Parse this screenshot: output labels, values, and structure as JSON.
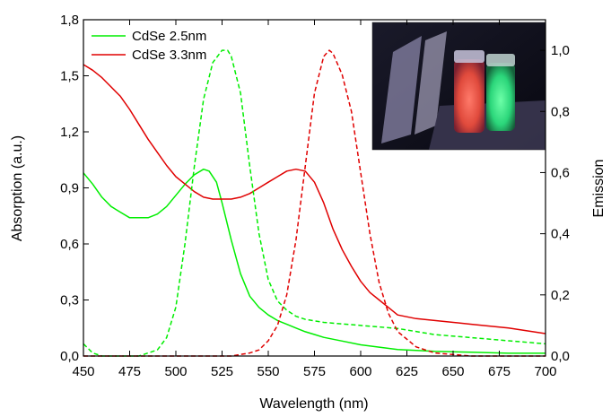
{
  "chart_data": {
    "type": "line",
    "xlabel": "Wavelength (nm)",
    "ylabel_left": "Absorption (a.u.)",
    "ylabel_right": "Emission",
    "xlim": [
      450,
      700
    ],
    "ylim_left": [
      0,
      1.8
    ],
    "ylim_right": [
      0,
      1.1
    ],
    "x_ticks": [
      "450",
      "475",
      "500",
      "525",
      "550",
      "575",
      "600",
      "625",
      "650",
      "675",
      "700"
    ],
    "y_left_ticks": [
      "0,0",
      "0,3",
      "0,6",
      "0,9",
      "1,2",
      "1,5",
      "1,8"
    ],
    "y_right_ticks": [
      "0,0",
      "0,2",
      "0,4",
      "0,6",
      "0,8",
      "1,0"
    ],
    "grid": false,
    "legend": {
      "position": "top-left",
      "entries": [
        {
          "label": "CdSe 2.5nm",
          "color": "#00ee00"
        },
        {
          "label": "CdSe 3.3nm",
          "color": "#e00000"
        }
      ]
    },
    "inset": "photo of two vials of quantum dot solutions glowing red and green under UV light",
    "series": [
      {
        "name": "CdSe 2.5nm",
        "kind": "absorption",
        "axis": "left",
        "style": "solid",
        "color": "#00ee00",
        "x": [
          450,
          455,
          460,
          465,
          470,
          475,
          480,
          485,
          490,
          495,
          500,
          505,
          510,
          515,
          518,
          522,
          525,
          530,
          535,
          540,
          545,
          550,
          555,
          560,
          565,
          570,
          575,
          580,
          590,
          600,
          620,
          640,
          660,
          680,
          700
        ],
        "y": [
          0.98,
          0.92,
          0.85,
          0.8,
          0.77,
          0.74,
          0.74,
          0.74,
          0.76,
          0.8,
          0.86,
          0.92,
          0.97,
          1.0,
          0.99,
          0.93,
          0.82,
          0.62,
          0.44,
          0.32,
          0.26,
          0.22,
          0.19,
          0.17,
          0.15,
          0.13,
          0.115,
          0.1,
          0.08,
          0.06,
          0.035,
          0.025,
          0.02,
          0.015,
          0.015
        ]
      },
      {
        "name": "CdSe 3.3nm",
        "kind": "absorption",
        "axis": "left",
        "style": "solid",
        "color": "#e00000",
        "x": [
          450,
          455,
          460,
          465,
          470,
          475,
          480,
          485,
          490,
          495,
          500,
          505,
          510,
          515,
          520,
          525,
          530,
          535,
          540,
          545,
          550,
          555,
          560,
          565,
          570,
          575,
          580,
          585,
          590,
          595,
          600,
          605,
          610,
          615,
          620,
          630,
          640,
          660,
          680,
          700
        ],
        "y": [
          1.56,
          1.53,
          1.49,
          1.44,
          1.39,
          1.32,
          1.24,
          1.16,
          1.09,
          1.02,
          0.96,
          0.92,
          0.88,
          0.85,
          0.84,
          0.84,
          0.84,
          0.85,
          0.87,
          0.9,
          0.93,
          0.96,
          0.99,
          1.0,
          0.99,
          0.93,
          0.82,
          0.68,
          0.57,
          0.48,
          0.4,
          0.34,
          0.3,
          0.26,
          0.22,
          0.2,
          0.19,
          0.17,
          0.15,
          0.12
        ]
      },
      {
        "name": "CdSe 2.5nm",
        "kind": "emission",
        "axis": "right",
        "style": "dashed",
        "color": "#00ee00",
        "x": [
          450,
          455,
          460,
          465,
          470,
          475,
          480,
          485,
          490,
          495,
          500,
          505,
          510,
          515,
          520,
          525,
          528,
          530,
          535,
          540,
          545,
          550,
          555,
          560,
          565,
          570,
          580,
          600,
          620,
          640,
          660,
          680,
          700
        ],
        "y": [
          0.04,
          0.01,
          0.0,
          0.0,
          0.0,
          0.0,
          0.0,
          0.01,
          0.02,
          0.06,
          0.16,
          0.37,
          0.62,
          0.84,
          0.96,
          1.0,
          1.0,
          0.98,
          0.86,
          0.62,
          0.4,
          0.25,
          0.18,
          0.15,
          0.13,
          0.12,
          0.11,
          0.1,
          0.09,
          0.07,
          0.06,
          0.05,
          0.04
        ]
      },
      {
        "name": "CdSe 3.3nm",
        "kind": "emission",
        "axis": "right",
        "style": "dashed",
        "color": "#e00000",
        "x": [
          450,
          500,
          530,
          540,
          545,
          550,
          555,
          560,
          565,
          570,
          575,
          580,
          583,
          585,
          590,
          595,
          600,
          605,
          610,
          615,
          620,
          630,
          640,
          660,
          680,
          700
        ],
        "y": [
          0.0,
          0.0,
          0.0,
          0.01,
          0.02,
          0.05,
          0.1,
          0.2,
          0.38,
          0.62,
          0.86,
          0.98,
          1.0,
          0.99,
          0.92,
          0.8,
          0.6,
          0.4,
          0.24,
          0.14,
          0.08,
          0.03,
          0.01,
          0.0,
          0.0,
          0.0
        ]
      }
    ]
  }
}
